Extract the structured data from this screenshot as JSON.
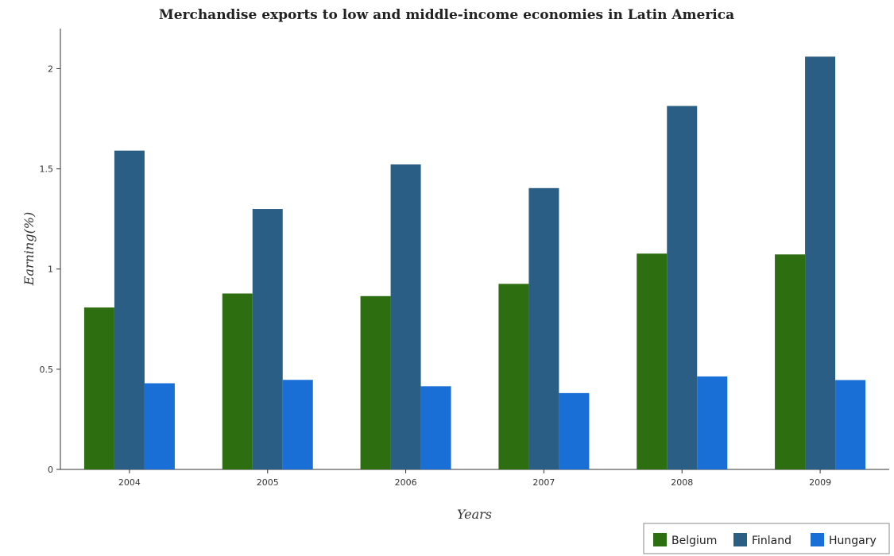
{
  "chart_data": {
    "type": "bar",
    "title": "Merchandise exports to low and middle-income economies in Latin America",
    "xlabel": "Years",
    "ylabel": "Earning(%)",
    "categories": [
      "2004",
      "2005",
      "2006",
      "2007",
      "2008",
      "2009"
    ],
    "series": [
      {
        "name": "Belgium",
        "color": "#2d6e10",
        "values": [
          0.808,
          0.878,
          0.865,
          0.926,
          1.077,
          1.073
        ]
      },
      {
        "name": "Finland",
        "color": "#2b5e84",
        "values": [
          1.591,
          1.3,
          1.522,
          1.404,
          1.814,
          2.06
        ]
      },
      {
        "name": "Hungary",
        "color": "#1a6fd6",
        "values": [
          0.43,
          0.447,
          0.415,
          0.381,
          0.464,
          0.446
        ]
      }
    ],
    "ylim": [
      0,
      2.2
    ],
    "yticks": [
      0,
      0.5,
      1,
      1.5,
      2
    ],
    "ytick_labels": [
      "0",
      "0.5",
      "1",
      "1.5",
      "2"
    ],
    "grid": false,
    "legend_position": "bottom-right"
  }
}
